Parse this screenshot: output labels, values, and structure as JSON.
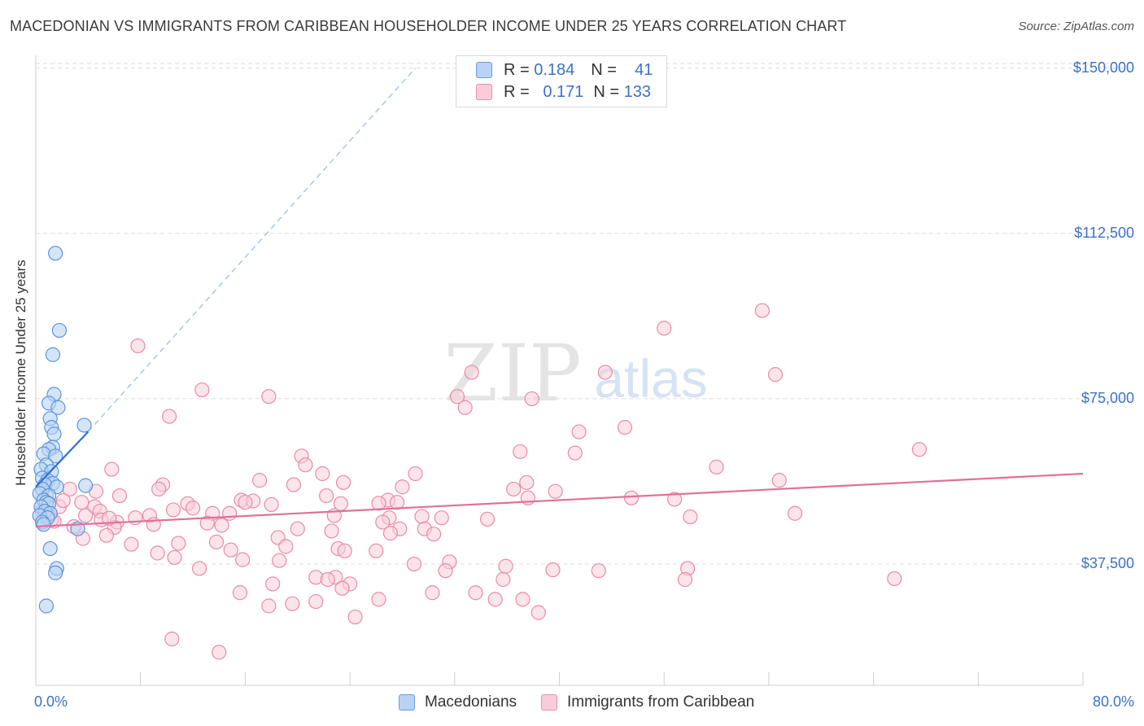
{
  "title": "MACEDONIAN VS IMMIGRANTS FROM CARIBBEAN HOUSEHOLDER INCOME UNDER 25 YEARS CORRELATION CHART",
  "source": "Source: ZipAtlas.com",
  "watermark": {
    "zip": "ZIP",
    "atlas": "atlas"
  },
  "legend_top": {
    "r_label": "R =",
    "n_label": "N =",
    "series1": {
      "r": "0.184",
      "n": "41"
    },
    "series2": {
      "r": "0.171",
      "n": "133"
    }
  },
  "legend_bottom": {
    "series1": "Macedonians",
    "series2": "Immigrants from Caribbean"
  },
  "colors": {
    "blue_fill": "#b8d3f3",
    "blue_stroke": "#5b93dc",
    "blue_line": "#2e6fd1",
    "pink_fill": "#f8cdd9",
    "pink_stroke": "#e98aa6",
    "pink_line": "#e0709a",
    "tick_text": "#3b72c9"
  },
  "chart_data": {
    "type": "scatter",
    "title": "MACEDONIAN VS IMMIGRANTS FROM CARIBBEAN HOUSEHOLDER INCOME UNDER 25 YEARS CORRELATION CHART",
    "xlabel": "",
    "ylabel": "Householder Income Under 25 years",
    "xlim": [
      0,
      80
    ],
    "ylim": [
      10000,
      154000
    ],
    "x_tick_labels": [
      "0.0%",
      "80.0%"
    ],
    "y_ticks": [
      37500,
      75000,
      112500,
      150000
    ],
    "y_tick_labels": [
      "$37,500",
      "$75,000",
      "$112,500",
      "$150,000"
    ],
    "grid": true,
    "series": [
      {
        "name": "Macedonians",
        "r": 0.184,
        "n": 41,
        "trend": {
          "x": [
            0,
            4.0
          ],
          "y": [
            55000,
            67500
          ]
        },
        "trend_ext": {
          "x": [
            4.0,
            29.0
          ],
          "y": [
            67500,
            150000
          ]
        },
        "points": [
          [
            1.5,
            108000
          ],
          [
            1.8,
            90500
          ],
          [
            1.3,
            85000
          ],
          [
            1.4,
            76000
          ],
          [
            1.0,
            74000
          ],
          [
            1.7,
            73000
          ],
          [
            1.1,
            70500
          ],
          [
            1.2,
            68500
          ],
          [
            1.4,
            67000
          ],
          [
            3.7,
            69000
          ],
          [
            1.3,
            64000
          ],
          [
            1.0,
            63500
          ],
          [
            0.6,
            62500
          ],
          [
            1.5,
            62000
          ],
          [
            0.8,
            60000
          ],
          [
            0.4,
            59000
          ],
          [
            1.2,
            58500
          ],
          [
            0.5,
            57000
          ],
          [
            0.9,
            56500
          ],
          [
            1.3,
            55800
          ],
          [
            0.7,
            55500
          ],
          [
            1.6,
            55000
          ],
          [
            3.8,
            55300
          ],
          [
            0.5,
            54500
          ],
          [
            0.3,
            53500
          ],
          [
            1.0,
            53000
          ],
          [
            0.6,
            52000
          ],
          [
            0.8,
            51500
          ],
          [
            1.0,
            51200
          ],
          [
            0.4,
            50500
          ],
          [
            0.7,
            49500
          ],
          [
            1.1,
            49000
          ],
          [
            0.3,
            48500
          ],
          [
            0.9,
            48000
          ],
          [
            0.5,
            47000
          ],
          [
            3.2,
            45500
          ],
          [
            1.1,
            41000
          ],
          [
            1.6,
            36500
          ],
          [
            1.5,
            35500
          ],
          [
            0.8,
            28000
          ],
          [
            0.6,
            46500
          ]
        ]
      },
      {
        "name": "Immigrants from Caribbean",
        "r": 0.171,
        "n": 133,
        "trend": {
          "x": [
            0,
            80
          ],
          "y": [
            46000,
            58000
          ]
        },
        "points": [
          [
            55.5,
            95000
          ],
          [
            48.0,
            91000
          ],
          [
            7.8,
            87000
          ],
          [
            43.5,
            81000
          ],
          [
            33.3,
            81000
          ],
          [
            56.5,
            80500
          ],
          [
            12.7,
            77000
          ],
          [
            17.8,
            75500
          ],
          [
            32.2,
            75500
          ],
          [
            37.9,
            75000
          ],
          [
            32.8,
            73000
          ],
          [
            10.2,
            71000
          ],
          [
            45.0,
            68500
          ],
          [
            41.5,
            67500
          ],
          [
            67.5,
            63500
          ],
          [
            37.0,
            63000
          ],
          [
            41.2,
            62700
          ],
          [
            20.3,
            62000
          ],
          [
            20.6,
            60000
          ],
          [
            52.0,
            59500
          ],
          [
            5.8,
            59000
          ],
          [
            29.0,
            58000
          ],
          [
            21.9,
            58000
          ],
          [
            17.1,
            56500
          ],
          [
            56.8,
            56500
          ],
          [
            23.5,
            56000
          ],
          [
            37.5,
            56000
          ],
          [
            19.7,
            55500
          ],
          [
            9.7,
            55500
          ],
          [
            28.0,
            55000
          ],
          [
            9.4,
            54500
          ],
          [
            36.5,
            54500
          ],
          [
            2.6,
            54500
          ],
          [
            4.6,
            54000
          ],
          [
            39.7,
            54000
          ],
          [
            0.8,
            53000
          ],
          [
            22.2,
            53000
          ],
          [
            6.4,
            53000
          ],
          [
            45.5,
            52500
          ],
          [
            37.6,
            52500
          ],
          [
            26.9,
            52000
          ],
          [
            15.7,
            52000
          ],
          [
            16.6,
            51800
          ],
          [
            3.5,
            51500
          ],
          [
            16.0,
            51500
          ],
          [
            27.6,
            51500
          ],
          [
            26.2,
            51300
          ],
          [
            23.3,
            51200
          ],
          [
            11.6,
            51200
          ],
          [
            18.0,
            51000
          ],
          [
            1.8,
            50500
          ],
          [
            4.5,
            50500
          ],
          [
            12.0,
            50200
          ],
          [
            10.5,
            49800
          ],
          [
            0.5,
            49500
          ],
          [
            4.9,
            49500
          ],
          [
            58.0,
            49000
          ],
          [
            14.8,
            49000
          ],
          [
            13.5,
            49000
          ],
          [
            22.8,
            48500
          ],
          [
            8.7,
            48500
          ],
          [
            3.8,
            48500
          ],
          [
            29.5,
            48300
          ],
          [
            50.0,
            48200
          ],
          [
            27.0,
            48000
          ],
          [
            31.0,
            48000
          ],
          [
            7.6,
            48000
          ],
          [
            34.5,
            47700
          ],
          [
            1.2,
            47500
          ],
          [
            5.0,
            47500
          ],
          [
            6.2,
            47000
          ],
          [
            26.5,
            47000
          ],
          [
            13.1,
            46800
          ],
          [
            9.0,
            46500
          ],
          [
            14.2,
            46300
          ],
          [
            2.9,
            46000
          ],
          [
            6.0,
            45800
          ],
          [
            20.0,
            45500
          ],
          [
            27.8,
            45500
          ],
          [
            29.7,
            45500
          ],
          [
            22.6,
            45000
          ],
          [
            27.1,
            44500
          ],
          [
            30.4,
            44300
          ],
          [
            5.4,
            44000
          ],
          [
            18.5,
            43500
          ],
          [
            13.8,
            42500
          ],
          [
            10.9,
            42200
          ],
          [
            7.3,
            42000
          ],
          [
            19.1,
            41500
          ],
          [
            23.1,
            41000
          ],
          [
            14.9,
            40700
          ],
          [
            23.6,
            40500
          ],
          [
            26.0,
            40500
          ],
          [
            9.3,
            40000
          ],
          [
            10.6,
            39000
          ],
          [
            15.8,
            38500
          ],
          [
            18.6,
            38300
          ],
          [
            28.9,
            37500
          ],
          [
            31.6,
            38000
          ],
          [
            35.9,
            37000
          ],
          [
            39.5,
            36200
          ],
          [
            43.0,
            36000
          ],
          [
            49.8,
            36500
          ],
          [
            35.7,
            34000
          ],
          [
            31.3,
            36000
          ],
          [
            12.5,
            36500
          ],
          [
            21.4,
            34500
          ],
          [
            22.9,
            34500
          ],
          [
            24.0,
            33000
          ],
          [
            18.1,
            33000
          ],
          [
            26.2,
            29500
          ],
          [
            30.3,
            31000
          ],
          [
            22.3,
            34000
          ],
          [
            23.4,
            32000
          ],
          [
            49.6,
            34000
          ],
          [
            65.6,
            34200
          ],
          [
            33.6,
            31000
          ],
          [
            35.1,
            29500
          ],
          [
            15.6,
            31000
          ],
          [
            17.8,
            28000
          ],
          [
            19.6,
            28500
          ],
          [
            21.4,
            29000
          ],
          [
            37.2,
            29500
          ],
          [
            38.4,
            26500
          ],
          [
            24.4,
            25500
          ],
          [
            10.4,
            20500
          ],
          [
            14.0,
            17500
          ],
          [
            3.6,
            43300
          ],
          [
            1.4,
            47200
          ],
          [
            2.1,
            51900
          ],
          [
            0.9,
            48600
          ],
          [
            5.6,
            47900
          ],
          [
            48.8,
            52200
          ]
        ]
      }
    ]
  }
}
